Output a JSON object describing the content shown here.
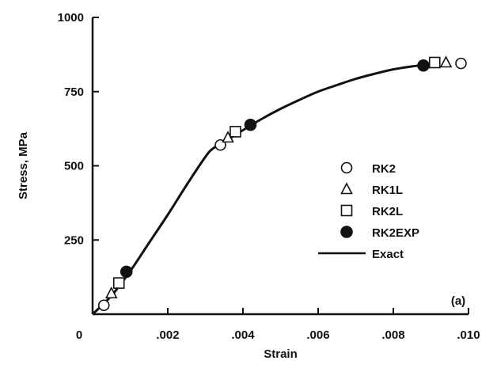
{
  "chart_data": {
    "type": "line",
    "title": "",
    "panel_label": "(a)",
    "xlabel": "Strain",
    "ylabel": "Stress, MPa",
    "xlim": [
      0,
      0.01
    ],
    "ylim": [
      0,
      1000
    ],
    "x_ticks": [
      {
        "value": 0,
        "label": "0"
      },
      {
        "value": 0.002,
        "label": ".002"
      },
      {
        "value": 0.004,
        "label": ".004"
      },
      {
        "value": 0.006,
        "label": ".006"
      },
      {
        "value": 0.008,
        "label": ".008"
      },
      {
        "value": 0.01,
        "label": ".010"
      }
    ],
    "y_ticks": [
      {
        "value": 250,
        "label": "250"
      },
      {
        "value": 500,
        "label": "500"
      },
      {
        "value": 750,
        "label": "750"
      },
      {
        "value": 1000,
        "label": "1000"
      }
    ],
    "grid": false,
    "legend_position": "right",
    "curve": {
      "name": "Exact",
      "x": [
        0,
        0.0005,
        0.001,
        0.0015,
        0.002,
        0.0025,
        0.003,
        0.0032,
        0.0035,
        0.004,
        0.0045,
        0.005,
        0.0055,
        0.006,
        0.0065,
        0.007,
        0.0075,
        0.008,
        0.0085,
        0.0088
      ],
      "y": [
        0,
        62,
        145,
        240,
        335,
        435,
        530,
        558,
        580,
        620,
        658,
        692,
        722,
        750,
        772,
        793,
        810,
        825,
        835,
        840
      ]
    },
    "series": [
      {
        "name": "RK2",
        "marker": "circle-open",
        "x": [
          0.0003,
          0.0034,
          0.0098
        ],
        "y": [
          30,
          570,
          845
        ]
      },
      {
        "name": "RK1L",
        "marker": "triangle-open",
        "x": [
          0.0005,
          0.0036,
          0.0094
        ],
        "y": [
          70,
          595,
          848
        ]
      },
      {
        "name": "RK2L",
        "marker": "square-open",
        "x": [
          0.0007,
          0.0038,
          0.0091
        ],
        "y": [
          105,
          615,
          848
        ]
      },
      {
        "name": "RK2EXP",
        "marker": "circle-filled",
        "x": [
          0.0009,
          0.0042,
          0.0088
        ],
        "y": [
          143,
          638,
          838
        ]
      }
    ]
  }
}
